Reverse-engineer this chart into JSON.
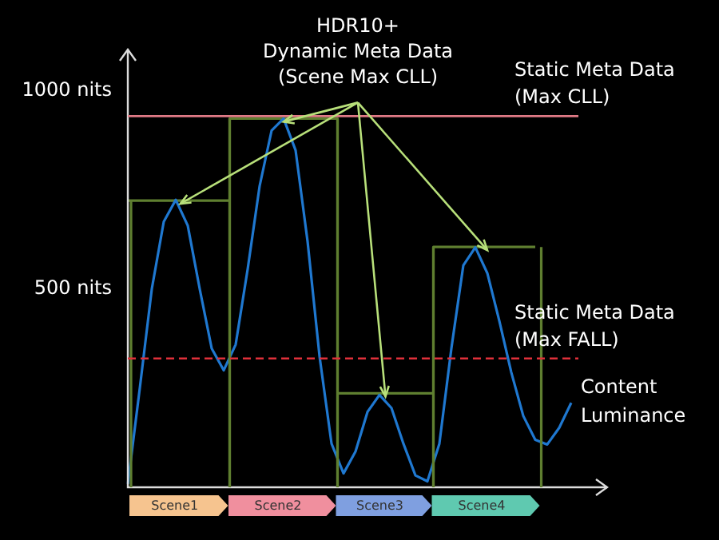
{
  "chart_data": {
    "type": "line",
    "annotations": [
      {
        "text": "HDR10+\nDynamic Meta Data\n(Scene Max CLL)",
        "y": 930
      },
      "Scene1",
      "Scene2",
      "Scene3",
      "Scene4"
    ],
    "categories": [
      null,
      null,
      null,
      null,
      null,
      null,
      null,
      null,
      null,
      null,
      null,
      null,
      null,
      null,
      null,
      null,
      null,
      null,
      null,
      null,
      null,
      null,
      null,
      null,
      null,
      null,
      null,
      null,
      null,
      null,
      null,
      null,
      null,
      null,
      null,
      null,
      null,
      null,
      null,
      null,
      null
    ],
    "ylim": [
      0,
      1100
    ],
    "yticks": [
      {
        "value": 500,
        "label": "500 nits"
      },
      {
        "value": 1000,
        "label": "1000 nits"
      }
    ],
    "series": [
      {
        "name": "Content Luminance",
        "color": "#1f78d0",
        "values": [
          8,
          250,
          500,
          670,
          725,
          660,
          500,
          350,
          295,
          360,
          550,
          760,
          900,
          930,
          850,
          620,
          330,
          110,
          35,
          90,
          190,
          233,
          200,
          110,
          30,
          15,
          110,
          350,
          560,
          605,
          540,
          420,
          290,
          180,
          120,
          108,
          150,
          213,
          null,
          null,
          null
        ]
      },
      {
        "type": "step",
        "color": "#5f7f30",
        "values": [
          723,
          723,
          723,
          723,
          723,
          723,
          723,
          723,
          723,
          930,
          930,
          930,
          930,
          930,
          930,
          930,
          930,
          930,
          237,
          237,
          237,
          237,
          237,
          237,
          237,
          237,
          606,
          606,
          606,
          606,
          606,
          606,
          606,
          606,
          606,
          null,
          null,
          null,
          null,
          null,
          null
        ]
      }
    ],
    "ref_lines": [
      {
        "axis": "y",
        "value": 936,
        "label": "Static Meta Data\n(Max CLL)",
        "color": "#e07a86",
        "line_style": "solid"
      },
      {
        "axis": "y",
        "value": 325,
        "label": "Static Meta Data\n(Max FALL)",
        "color": "#e0303a",
        "line_style": "dashed"
      }
    ],
    "grid": false,
    "legend": false,
    "marker": "none",
    "line_style": "solid"
  }
}
